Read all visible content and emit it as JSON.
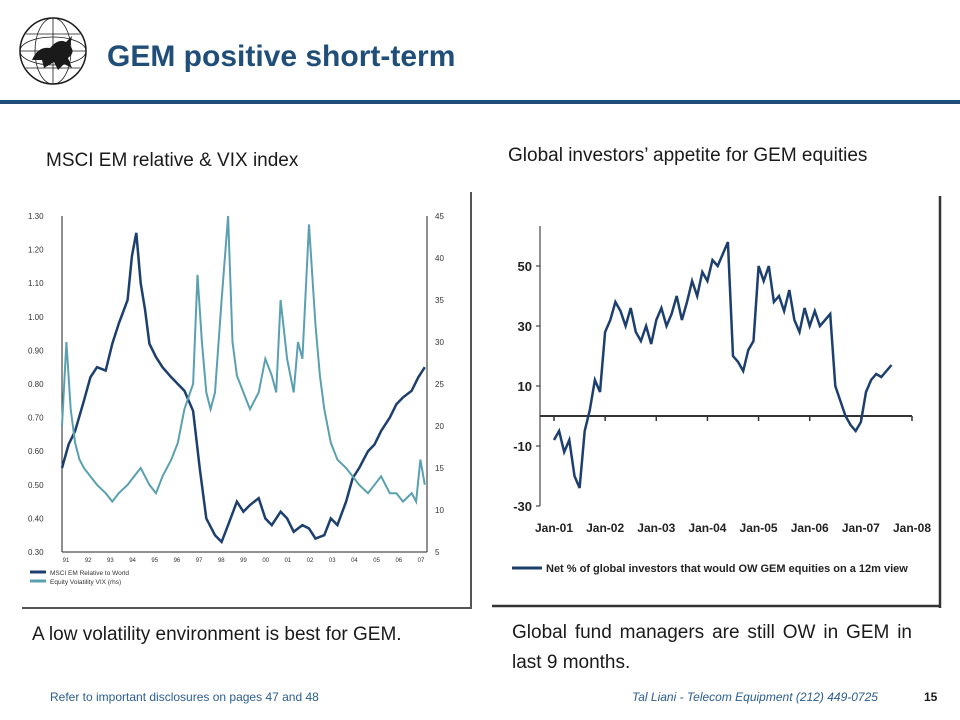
{
  "slide": {
    "title": "GEM positive short-term",
    "left_caption_top": "MSCI EM relative & VIX index",
    "right_caption_top": "Global investors’ appetite for GEM equities",
    "left_caption_bottom": "A low volatility environment is best for GEM.",
    "right_caption_bottom": "Global fund managers are still OW in GEM in last 9 months.",
    "footer_left": "Refer to important disclosures on pages 47 and 48",
    "footer_right": "Tal Liani - Telecom Equipment (212) 449-0725",
    "page_number": "15"
  },
  "colors": {
    "accent": "#1f4e79",
    "series_dark": "#1c3f6e",
    "series_light": "#5aa0b0"
  },
  "chart_data": [
    {
      "type": "line",
      "title": "",
      "y_left_ticks": [
        "0.30",
        "0.40",
        "0.50",
        "0.60",
        "0.70",
        "0.80",
        "0.90",
        "1.00",
        "1.10",
        "1.20",
        "1.30"
      ],
      "y_right_ticks": [
        "5",
        "10",
        "15",
        "20",
        "25",
        "30",
        "35",
        "40",
        "45"
      ],
      "x_ticks": [
        "91",
        "92",
        "93",
        "94",
        "95",
        "96",
        "97",
        "98",
        "99",
        "00",
        "01",
        "02",
        "03",
        "04",
        "05",
        "06",
        "07"
      ],
      "ylim_left": [
        0.3,
        1.3
      ],
      "ylim_right": [
        5,
        45
      ],
      "series": [
        {
          "name": "MSCI EM Relative to World",
          "axis": "left",
          "x": [
            1991.0,
            1991.3,
            1991.6,
            1992.0,
            1992.3,
            1992.6,
            1993.0,
            1993.3,
            1993.6,
            1994.0,
            1994.2,
            1994.4,
            1994.6,
            1994.8,
            1995.0,
            1995.3,
            1995.6,
            1996.0,
            1996.3,
            1996.6,
            1997.0,
            1997.3,
            1997.6,
            1998.0,
            1998.3,
            1998.6,
            1999.0,
            1999.3,
            1999.6,
            2000.0,
            2000.3,
            2000.6,
            2001.0,
            2001.3,
            2001.6,
            2002.0,
            2002.3,
            2002.6,
            2003.0,
            2003.3,
            2003.6,
            2004.0,
            2004.3,
            2004.6,
            2005.0,
            2005.3,
            2005.6,
            2006.0,
            2006.3,
            2006.6,
            2007.0,
            2007.3,
            2007.6
          ],
          "y": [
            0.55,
            0.62,
            0.66,
            0.75,
            0.82,
            0.85,
            0.84,
            0.92,
            0.98,
            1.05,
            1.18,
            1.25,
            1.1,
            1.02,
            0.92,
            0.88,
            0.85,
            0.82,
            0.8,
            0.78,
            0.72,
            0.55,
            0.4,
            0.35,
            0.33,
            0.38,
            0.45,
            0.42,
            0.44,
            0.46,
            0.4,
            0.38,
            0.42,
            0.4,
            0.36,
            0.38,
            0.37,
            0.34,
            0.35,
            0.4,
            0.38,
            0.45,
            0.52,
            0.55,
            0.6,
            0.62,
            0.66,
            0.7,
            0.74,
            0.76,
            0.78,
            0.82,
            0.85
          ]
        },
        {
          "name": "Equity Volatility VIX (rhs)",
          "axis": "right",
          "x": [
            1991.0,
            1991.2,
            1991.4,
            1991.6,
            1991.8,
            1992.0,
            1992.3,
            1992.6,
            1993.0,
            1993.3,
            1993.6,
            1994.0,
            1994.3,
            1994.6,
            1995.0,
            1995.3,
            1995.6,
            1996.0,
            1996.3,
            1996.6,
            1997.0,
            1997.2,
            1997.4,
            1997.6,
            1997.8,
            1998.0,
            1998.3,
            1998.6,
            1998.8,
            1999.0,
            1999.3,
            1999.6,
            2000.0,
            2000.3,
            2000.6,
            2000.8,
            2001.0,
            2001.3,
            2001.6,
            2001.8,
            2002.0,
            2002.3,
            2002.6,
            2002.8,
            2003.0,
            2003.3,
            2003.6,
            2004.0,
            2004.3,
            2004.6,
            2005.0,
            2005.3,
            2005.6,
            2006.0,
            2006.3,
            2006.6,
            2007.0,
            2007.2,
            2007.4,
            2007.6
          ],
          "y": [
            20,
            30,
            22,
            18,
            16,
            15,
            14,
            13,
            12,
            11,
            12,
            13,
            14,
            15,
            13,
            12,
            14,
            16,
            18,
            22,
            25,
            38,
            30,
            24,
            22,
            24,
            35,
            45,
            30,
            26,
            24,
            22,
            24,
            28,
            26,
            24,
            35,
            28,
            24,
            30,
            28,
            44,
            32,
            26,
            22,
            18,
            16,
            15,
            14,
            13,
            12,
            13,
            14,
            12,
            12,
            11,
            12,
            11,
            16,
            13
          ]
        }
      ]
    },
    {
      "type": "line",
      "title": "",
      "y_ticks": [
        "50",
        "30",
        "10",
        "-10",
        "-30"
      ],
      "x_ticks": [
        "Jan-01",
        "Jan-02",
        "Jan-03",
        "Jan-04",
        "Jan-05",
        "Jan-06",
        "Jan-07",
        "Jan-08"
      ],
      "ylim": [
        -30,
        60
      ],
      "reference_line_y": 0,
      "series": [
        {
          "name": "Net % of global investors that would OW GEM equities on a 12m view",
          "x": [
            2001.0,
            2001.1,
            2001.2,
            2001.3,
            2001.4,
            2001.5,
            2001.6,
            2001.7,
            2001.8,
            2001.9,
            2002.0,
            2002.1,
            2002.2,
            2002.3,
            2002.4,
            2002.5,
            2002.6,
            2002.7,
            2002.8,
            2002.9,
            2003.0,
            2003.1,
            2003.2,
            2003.3,
            2003.4,
            2003.5,
            2003.6,
            2003.7,
            2003.8,
            2003.9,
            2004.0,
            2004.1,
            2004.2,
            2004.3,
            2004.4,
            2004.5,
            2004.6,
            2004.7,
            2004.8,
            2004.9,
            2005.0,
            2005.1,
            2005.2,
            2005.3,
            2005.4,
            2005.5,
            2005.6,
            2005.7,
            2005.8,
            2005.9,
            2006.0,
            2006.1,
            2006.2,
            2006.3,
            2006.4,
            2006.5,
            2006.6,
            2006.7,
            2006.8,
            2006.9,
            2007.0,
            2007.1,
            2007.2,
            2007.3,
            2007.4,
            2007.5,
            2007.6
          ],
          "y": [
            -8,
            -5,
            -12,
            -8,
            -20,
            -24,
            -5,
            2,
            12,
            8,
            28,
            32,
            38,
            35,
            30,
            36,
            28,
            25,
            30,
            24,
            32,
            36,
            30,
            34,
            40,
            32,
            38,
            45,
            40,
            48,
            45,
            52,
            50,
            54,
            58,
            20,
            18,
            15,
            22,
            25,
            50,
            45,
            50,
            38,
            40,
            35,
            42,
            32,
            28,
            36,
            30,
            35,
            30,
            32,
            34,
            10,
            5,
            0,
            -3,
            -5,
            -2,
            8,
            12,
            14,
            13,
            15,
            17
          ]
        }
      ]
    }
  ]
}
